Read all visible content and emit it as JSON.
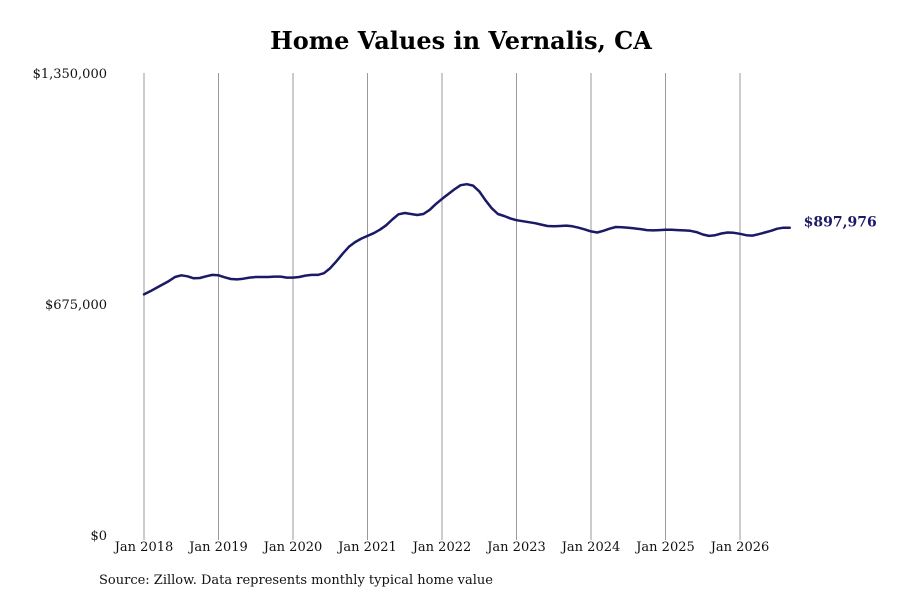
{
  "source_note": "Source: Zillow. Data represents monthly typical home value",
  "chart_data": {
    "type": "line",
    "title": "Home Values in Vernalis, CA",
    "xlabel": "",
    "ylabel": "",
    "ylim": [
      0,
      1350000
    ],
    "y_ticks": [
      0,
      675000,
      1350000
    ],
    "y_tick_labels": [
      "$0",
      "$675,000",
      "$1,350,000"
    ],
    "x_ticks": [
      "2018-01",
      "2019-01",
      "2020-01",
      "2021-01",
      "2022-01",
      "2023-01",
      "2024-01",
      "2025-01",
      "2026-01"
    ],
    "x_tick_labels": [
      "Jan 2018",
      "Jan 2019",
      "Jan 2020",
      "Jan 2021",
      "Jan 2022",
      "Jan 2023",
      "Jan 2024",
      "Jan 2025",
      "Jan 2026"
    ],
    "grid": {
      "vertical": true,
      "horizontal": false
    },
    "line_color": "#1a1a66",
    "grid_color": "#9a9a9a",
    "end_label": "$897,976",
    "series": [
      {
        "x": [
          "2018-01",
          "2018-02",
          "2018-03",
          "2018-04",
          "2018-05",
          "2018-06",
          "2018-07",
          "2018-08",
          "2018-09",
          "2018-10",
          "2018-11",
          "2018-12",
          "2019-01",
          "2019-02",
          "2019-03",
          "2019-04",
          "2019-05",
          "2019-06",
          "2019-07",
          "2019-08",
          "2019-09",
          "2019-10",
          "2019-11",
          "2019-12",
          "2020-01",
          "2020-02",
          "2020-03",
          "2020-04",
          "2020-05",
          "2020-06",
          "2020-07",
          "2020-08",
          "2020-09",
          "2020-10",
          "2020-11",
          "2020-12",
          "2021-01",
          "2021-02",
          "2021-03",
          "2021-04",
          "2021-05",
          "2021-06",
          "2021-07",
          "2021-08",
          "2021-09",
          "2021-10",
          "2021-11",
          "2021-12",
          "2022-01",
          "2022-02",
          "2022-03",
          "2022-04",
          "2022-05",
          "2022-06",
          "2022-07",
          "2022-08",
          "2022-09",
          "2022-10",
          "2022-11",
          "2022-12",
          "2023-01",
          "2023-02",
          "2023-03",
          "2023-04",
          "2023-05",
          "2023-06",
          "2023-07",
          "2023-08",
          "2023-09",
          "2023-10",
          "2023-11",
          "2023-12",
          "2024-01",
          "2024-02",
          "2024-03",
          "2024-04",
          "2024-05",
          "2024-06",
          "2024-07",
          "2024-08",
          "2024-09",
          "2024-10",
          "2024-11",
          "2024-12",
          "2025-01",
          "2025-02",
          "2025-03",
          "2025-04",
          "2025-05",
          "2025-06",
          "2025-07",
          "2025-08",
          "2025-09",
          "2025-10",
          "2025-11",
          "2025-12",
          "2026-01",
          "2026-02",
          "2026-03",
          "2026-04",
          "2026-05",
          "2026-06",
          "2026-07",
          "2026-08",
          "2026-09"
        ],
        "values": [
          703000,
          712000,
          722000,
          732000,
          742000,
          754000,
          759000,
          756000,
          750000,
          751000,
          756000,
          760000,
          759000,
          753000,
          748000,
          747000,
          749000,
          752000,
          754000,
          754000,
          754000,
          755000,
          755000,
          752000,
          752000,
          754000,
          758000,
          760000,
          760000,
          765000,
          780000,
          800000,
          822000,
          842000,
          856000,
          866000,
          874000,
          882000,
          892000,
          905000,
          922000,
          937000,
          941000,
          938000,
          935000,
          938000,
          950000,
          967000,
          982000,
          996000,
          1010000,
          1022000,
          1025000,
          1021000,
          1004000,
          978000,
          955000,
          938000,
          932000,
          925000,
          920000,
          917000,
          914000,
          911000,
          907000,
          903000,
          902000,
          903000,
          904000,
          902000,
          898000,
          893000,
          887000,
          884000,
          889000,
          895000,
          900000,
          899000,
          898000,
          896000,
          894000,
          891000,
          890000,
          891000,
          892000,
          892000,
          891000,
          890000,
          889000,
          885000,
          878000,
          874000,
          876000,
          881000,
          884000,
          883000,
          880000,
          876000,
          875000,
          879000,
          884000,
          889000,
          895000,
          897976,
          897976
        ]
      }
    ]
  }
}
